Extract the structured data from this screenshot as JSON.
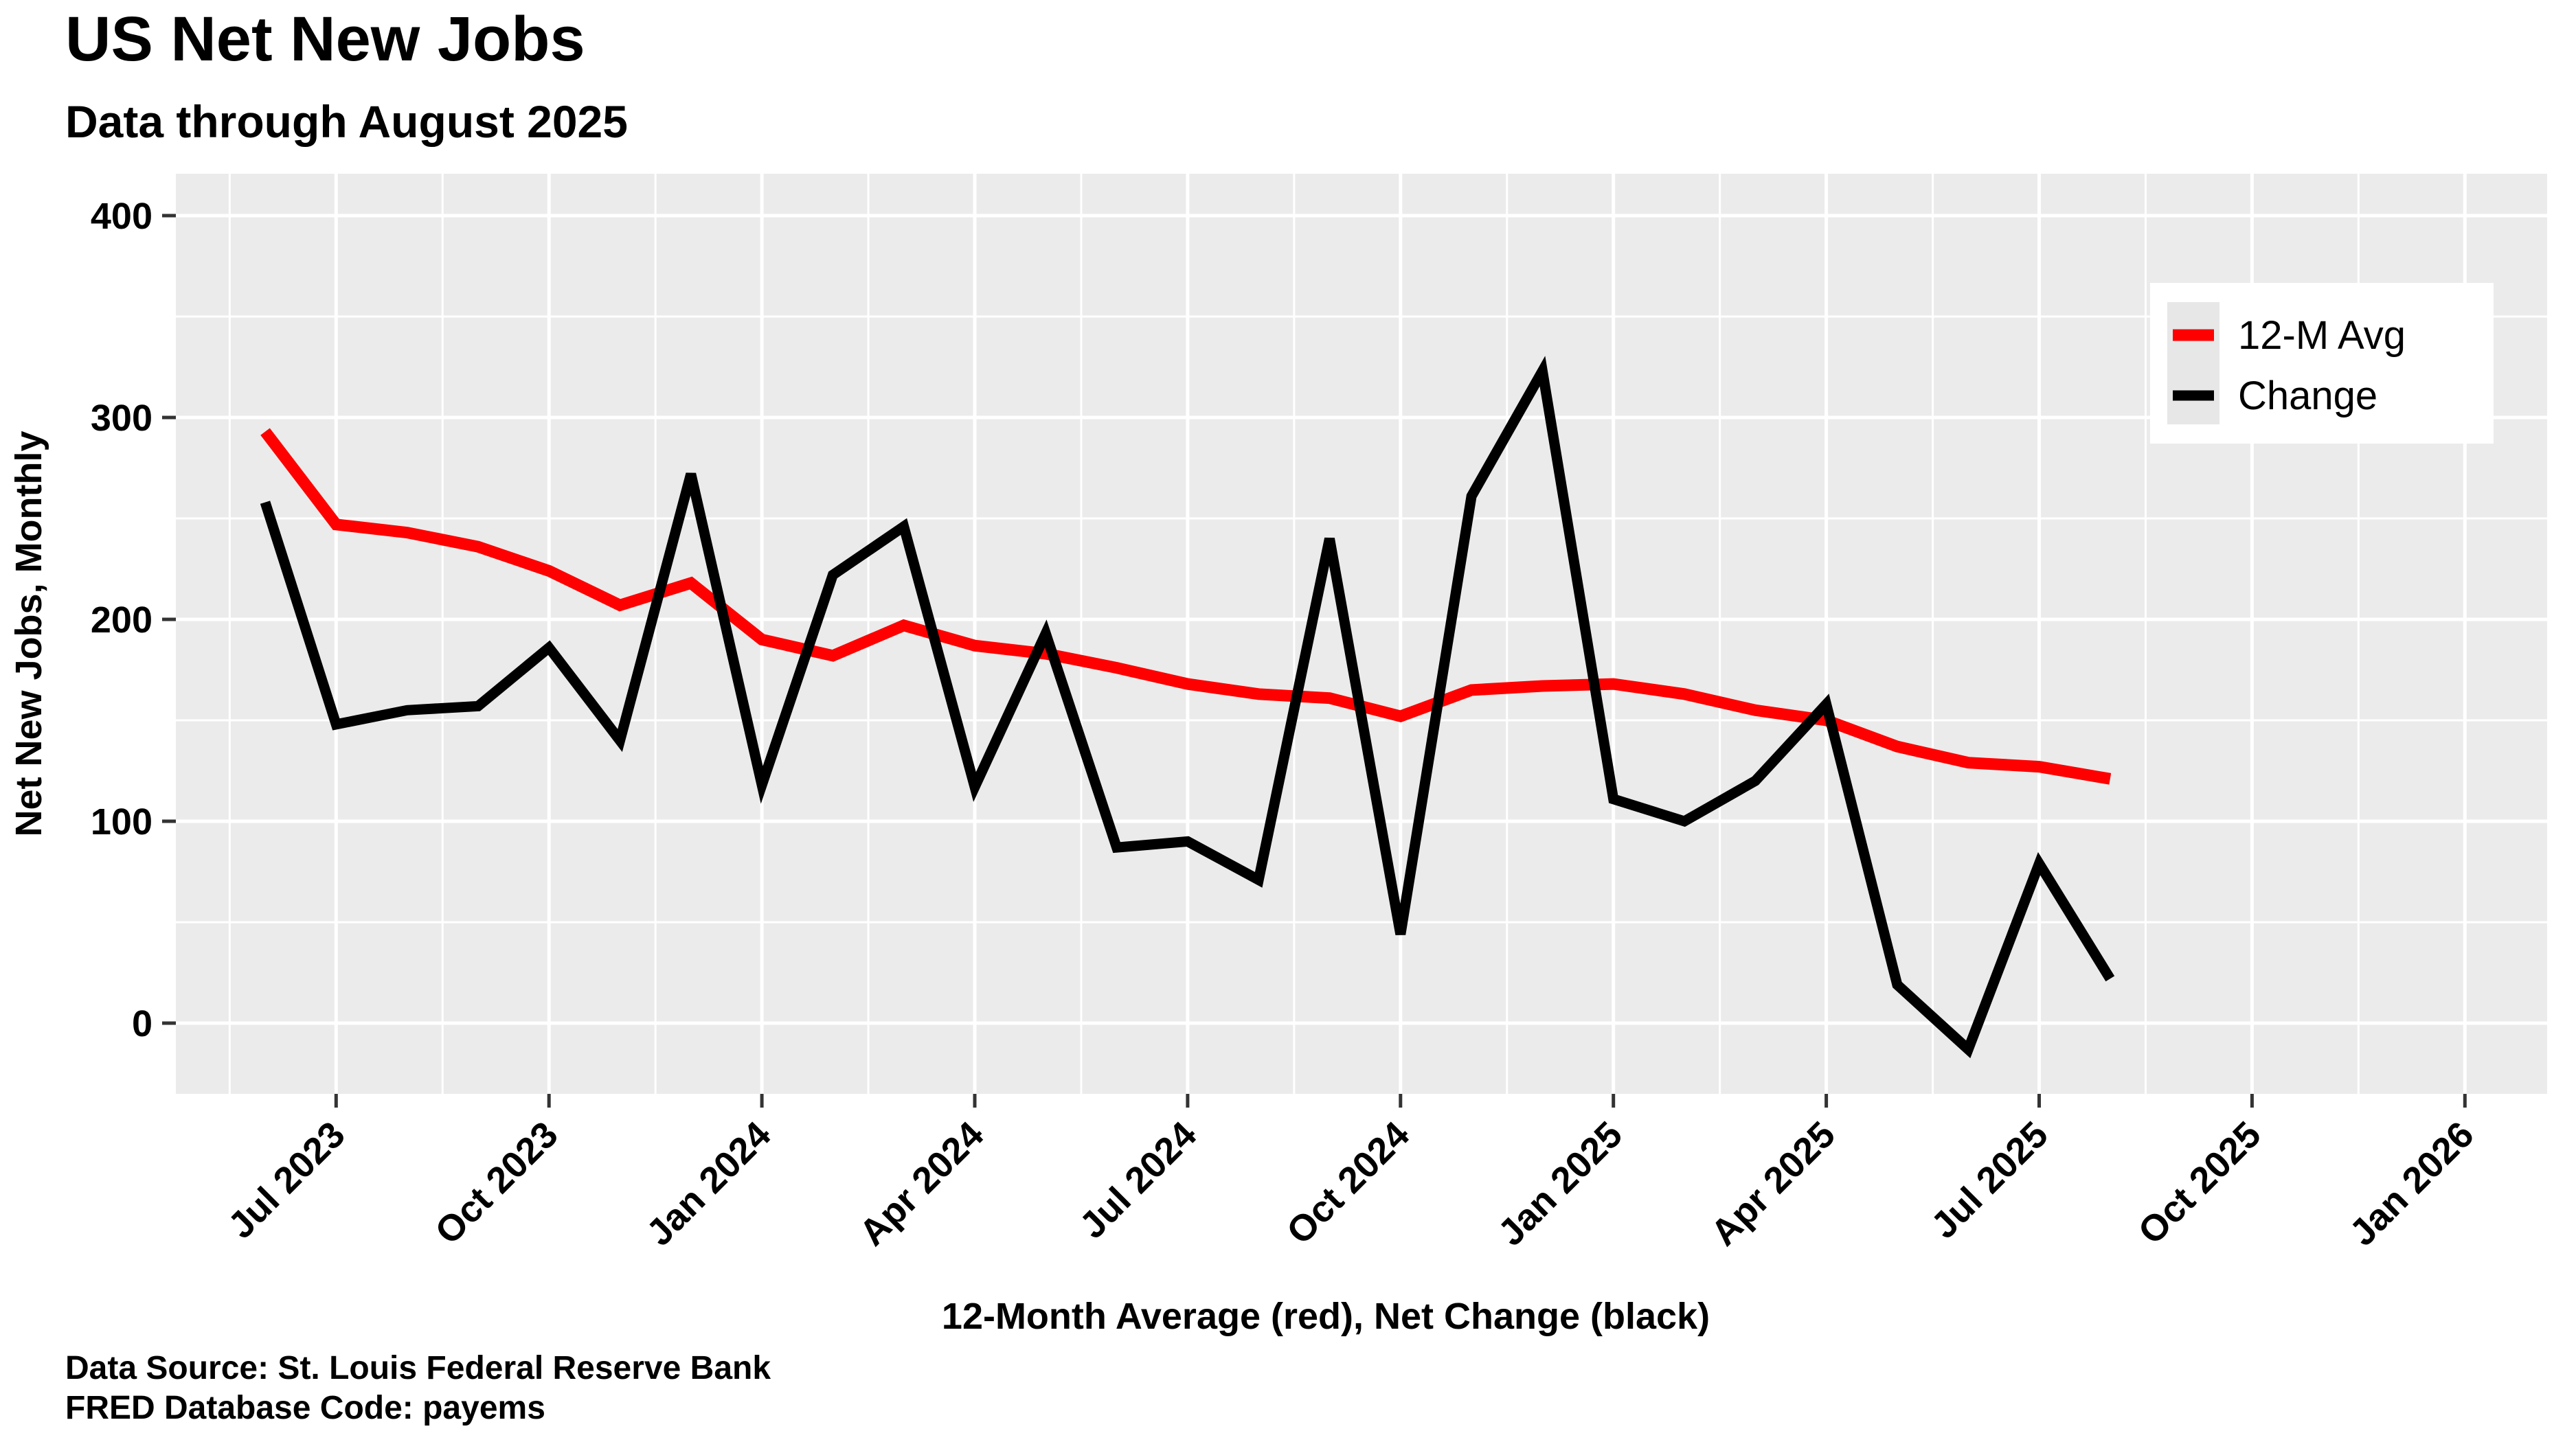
{
  "header": {
    "title": "US Net New Jobs",
    "subtitle": "Data through August 2025"
  },
  "caption": {
    "line1": "Data Source: St. Louis Federal Reserve Bank",
    "line2": "FRED Database Code: payems"
  },
  "legend": {
    "items": [
      {
        "label": "12-M Avg",
        "color": "#FF0000"
      },
      {
        "label": "Change",
        "color": "#000000"
      }
    ]
  },
  "colors": {
    "avg_line": "#FF0000",
    "change_line": "#000000",
    "panel_background": "#EBEBEB",
    "gridline": "#FFFFFF",
    "text": "#000000",
    "legend_background": "#FFFFFF",
    "legend_key_background": "#E7E7E7",
    "tick_mark": "#333333"
  },
  "chart_data": {
    "type": "line",
    "title": "US Net New Jobs",
    "subtitle": "Data through August 2025",
    "xlabel": "12-Month Average (red), Net Change (black)",
    "ylabel": "Net New Jobs, Monthly",
    "x": [
      "Jun 2023",
      "Jul 2023",
      "Aug 2023",
      "Sep 2023",
      "Oct 2023",
      "Nov 2023",
      "Dec 2023",
      "Jan 2024",
      "Feb 2024",
      "Mar 2024",
      "Apr 2024",
      "May 2024",
      "Jun 2024",
      "Jul 2024",
      "Aug 2024",
      "Sep 2024",
      "Oct 2024",
      "Nov 2024",
      "Dec 2024",
      "Jan 2025",
      "Feb 2025",
      "Mar 2025",
      "Apr 2025",
      "May 2025",
      "Jun 2025",
      "Jul 2025",
      "Aug 2025"
    ],
    "series": [
      {
        "name": "12-M Avg",
        "color": "#FF0000",
        "values": [
          293,
          247,
          243,
          236,
          224,
          207,
          218,
          190,
          182,
          197,
          187,
          183,
          176,
          168,
          163,
          161,
          152,
          165,
          167,
          168,
          163,
          155,
          150,
          137,
          129,
          127,
          121
        ]
      },
      {
        "name": "Change",
        "color": "#000000",
        "values": [
          258,
          148,
          155,
          157,
          186,
          140,
          272,
          118,
          222,
          246,
          117,
          193,
          87,
          90,
          71,
          240,
          44,
          261,
          323,
          111,
          100,
          120,
          158,
          19,
          -13,
          79,
          22
        ]
      }
    ],
    "x_ticks": [
      "Jul 2023",
      "Oct 2023",
      "Jan 2024",
      "Apr 2024",
      "Jul 2024",
      "Oct 2024",
      "Jan 2025",
      "Apr 2025",
      "Jul 2025",
      "Oct 2025",
      "Jan 2026"
    ],
    "y_ticks": [
      0,
      100,
      200,
      300,
      400
    ],
    "ylim": [
      -45,
      420
    ],
    "grid": "white major and minor gridlines on gray panel",
    "legend_position": "inside top-right"
  }
}
